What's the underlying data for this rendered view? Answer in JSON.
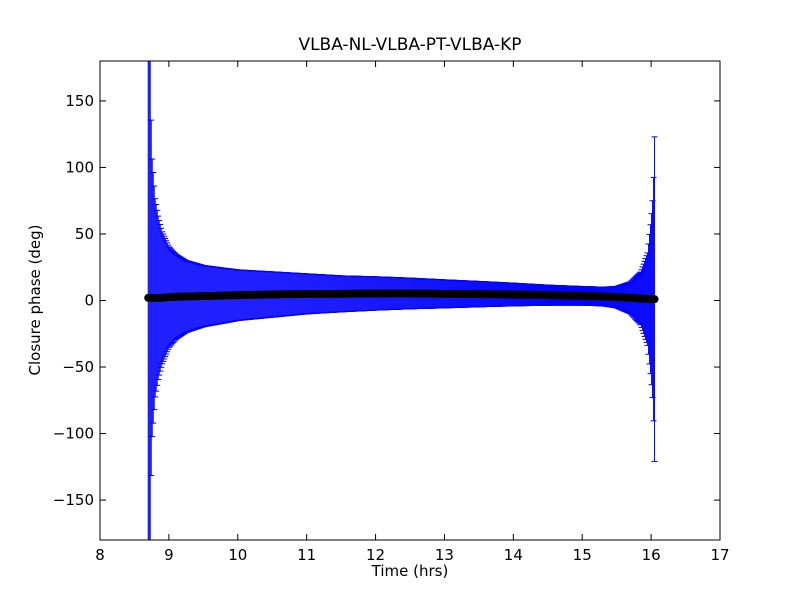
{
  "chart_data": {
    "type": "scatter",
    "title": "VLBA-NL-VLBA-PT-VLBA-KP",
    "xlabel": "Time (hrs)",
    "ylabel": "Closure phase (deg)",
    "xlim": [
      8,
      17
    ],
    "ylim": [
      -180,
      180
    ],
    "xticks": [
      8,
      9,
      10,
      11,
      12,
      13,
      14,
      15,
      16,
      17
    ],
    "yticks": [
      -150,
      -100,
      -50,
      0,
      50,
      100,
      150
    ],
    "ytick_labels": [
      "−150",
      "−100",
      "−50",
      "0",
      "50",
      "100",
      "150"
    ],
    "grid": false,
    "series": [
      {
        "style": "points with error bars",
        "marker_color": "#000000",
        "errorbar_color": "#0000ff",
        "x_range": [
          8.7,
          16.05
        ],
        "points": [
          {
            "x": 8.7,
            "y": 2,
            "err": 250
          },
          {
            "x": 8.72,
            "y": 2,
            "err": 220
          },
          {
            "x": 8.75,
            "y": 2,
            "err": 110
          },
          {
            "x": 8.8,
            "y": 2,
            "err": 75
          },
          {
            "x": 8.85,
            "y": 2,
            "err": 60
          },
          {
            "x": 8.9,
            "y": 2,
            "err": 50
          },
          {
            "x": 9.0,
            "y": 2.5,
            "err": 38
          },
          {
            "x": 9.1,
            "y": 2.8,
            "err": 32
          },
          {
            "x": 9.25,
            "y": 3,
            "err": 27
          },
          {
            "x": 9.5,
            "y": 3.3,
            "err": 23
          },
          {
            "x": 9.75,
            "y": 3.6,
            "err": 21
          },
          {
            "x": 10.0,
            "y": 4,
            "err": 19
          },
          {
            "x": 10.5,
            "y": 4.5,
            "err": 17
          },
          {
            "x": 11.0,
            "y": 5,
            "err": 15
          },
          {
            "x": 11.5,
            "y": 5,
            "err": 13.5
          },
          {
            "x": 12.0,
            "y": 5.3,
            "err": 12.5
          },
          {
            "x": 12.5,
            "y": 5.3,
            "err": 11.5
          },
          {
            "x": 13.0,
            "y": 5,
            "err": 10.5
          },
          {
            "x": 13.5,
            "y": 4.8,
            "err": 9.5
          },
          {
            "x": 14.0,
            "y": 4.5,
            "err": 8.5
          },
          {
            "x": 14.5,
            "y": 4,
            "err": 7.5
          },
          {
            "x": 15.0,
            "y": 3.5,
            "err": 7
          },
          {
            "x": 15.3,
            "y": 3,
            "err": 7
          },
          {
            "x": 15.5,
            "y": 2.5,
            "err": 8
          },
          {
            "x": 15.7,
            "y": 2,
            "err": 12
          },
          {
            "x": 15.85,
            "y": 1.5,
            "err": 20
          },
          {
            "x": 15.95,
            "y": 1,
            "err": 35
          },
          {
            "x": 16.0,
            "y": 1,
            "err": 60
          },
          {
            "x": 16.03,
            "y": 1,
            "err": 80
          },
          {
            "x": 16.05,
            "y": 1,
            "err": 122
          }
        ]
      }
    ]
  }
}
